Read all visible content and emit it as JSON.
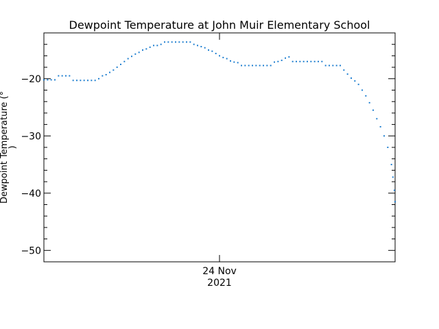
{
  "chart_data": {
    "type": "scatter",
    "title": "Dewpoint Temperature at John Muir Elementary School",
    "ylabel": "Dewpoint Temperature (°\n)",
    "xlabel_tick": {
      "line1": "24 Nov",
      "line2": "2021"
    },
    "x_tick_position_hours": 12,
    "xlim_hours": [
      0,
      24
    ],
    "ylim": [
      -52,
      -12
    ],
    "y_ticks": [
      -20,
      -30,
      -40,
      -50
    ],
    "y_tick_labels": [
      "−20",
      "−30",
      "−40",
      "−50"
    ],
    "series_color": "#1f7fd0",
    "points": [
      [
        0.0,
        -20.2
      ],
      [
        0.25,
        -20.2
      ],
      [
        0.5,
        -20.2
      ],
      [
        0.75,
        -20.2
      ],
      [
        1.0,
        -19.5
      ],
      [
        1.25,
        -19.5
      ],
      [
        1.5,
        -19.5
      ],
      [
        1.75,
        -19.5
      ],
      [
        2.0,
        -20.3
      ],
      [
        2.25,
        -20.3
      ],
      [
        2.5,
        -20.3
      ],
      [
        2.75,
        -20.3
      ],
      [
        3.0,
        -20.3
      ],
      [
        3.25,
        -20.3
      ],
      [
        3.5,
        -20.3
      ],
      [
        3.75,
        -20.0
      ],
      [
        4.0,
        -19.5
      ],
      [
        4.25,
        -19.3
      ],
      [
        4.5,
        -18.9
      ],
      [
        4.75,
        -18.5
      ],
      [
        5.0,
        -18.0
      ],
      [
        5.25,
        -17.5
      ],
      [
        5.5,
        -17.0
      ],
      [
        5.75,
        -16.5
      ],
      [
        6.0,
        -16.1
      ],
      [
        6.25,
        -15.7
      ],
      [
        6.5,
        -15.4
      ],
      [
        6.75,
        -15.0
      ],
      [
        7.0,
        -14.8
      ],
      [
        7.25,
        -14.5
      ],
      [
        7.5,
        -14.2
      ],
      [
        7.75,
        -14.2
      ],
      [
        8.0,
        -14.0
      ],
      [
        8.25,
        -13.6
      ],
      [
        8.5,
        -13.6
      ],
      [
        8.75,
        -13.6
      ],
      [
        9.0,
        -13.6
      ],
      [
        9.25,
        -13.6
      ],
      [
        9.5,
        -13.6
      ],
      [
        9.75,
        -13.6
      ],
      [
        10.0,
        -13.6
      ],
      [
        10.25,
        -14.0
      ],
      [
        10.5,
        -14.2
      ],
      [
        10.75,
        -14.4
      ],
      [
        11.0,
        -14.6
      ],
      [
        11.25,
        -15.0
      ],
      [
        11.5,
        -15.2
      ],
      [
        11.75,
        -15.6
      ],
      [
        12.0,
        -16.0
      ],
      [
        12.25,
        -16.3
      ],
      [
        12.5,
        -16.5
      ],
      [
        12.75,
        -16.9
      ],
      [
        13.0,
        -17.1
      ],
      [
        13.25,
        -17.2
      ],
      [
        13.5,
        -17.7
      ],
      [
        13.75,
        -17.7
      ],
      [
        14.0,
        -17.7
      ],
      [
        14.25,
        -17.7
      ],
      [
        14.5,
        -17.7
      ],
      [
        14.75,
        -17.7
      ],
      [
        15.0,
        -17.7
      ],
      [
        15.25,
        -17.7
      ],
      [
        15.5,
        -17.7
      ],
      [
        15.75,
        -17.1
      ],
      [
        16.0,
        -17.0
      ],
      [
        16.25,
        -16.8
      ],
      [
        16.5,
        -16.4
      ],
      [
        16.75,
        -16.2
      ],
      [
        17.0,
        -17.0
      ],
      [
        17.25,
        -17.0
      ],
      [
        17.5,
        -17.0
      ],
      [
        17.75,
        -17.0
      ],
      [
        18.0,
        -17.0
      ],
      [
        18.25,
        -17.0
      ],
      [
        18.5,
        -17.0
      ],
      [
        18.75,
        -17.0
      ],
      [
        19.0,
        -17.0
      ],
      [
        19.25,
        -17.7
      ],
      [
        19.5,
        -17.7
      ],
      [
        19.75,
        -17.7
      ],
      [
        20.0,
        -17.7
      ],
      [
        20.25,
        -17.7
      ],
      [
        20.5,
        -18.5
      ],
      [
        20.75,
        -19.2
      ],
      [
        21.0,
        -19.9
      ],
      [
        21.25,
        -20.4
      ],
      [
        21.5,
        -21.0
      ],
      [
        21.75,
        -22.0
      ],
      [
        22.0,
        -23.0
      ],
      [
        22.25,
        -24.2
      ],
      [
        22.5,
        -25.5
      ],
      [
        22.75,
        -27.0
      ],
      [
        23.0,
        -28.4
      ],
      [
        23.25,
        -30.0
      ],
      [
        23.5,
        -32.0
      ],
      [
        23.75,
        -35.0
      ],
      [
        23.85,
        -37.2
      ],
      [
        23.95,
        -39.5
      ],
      [
        24.0,
        -41.5
      ]
    ]
  }
}
